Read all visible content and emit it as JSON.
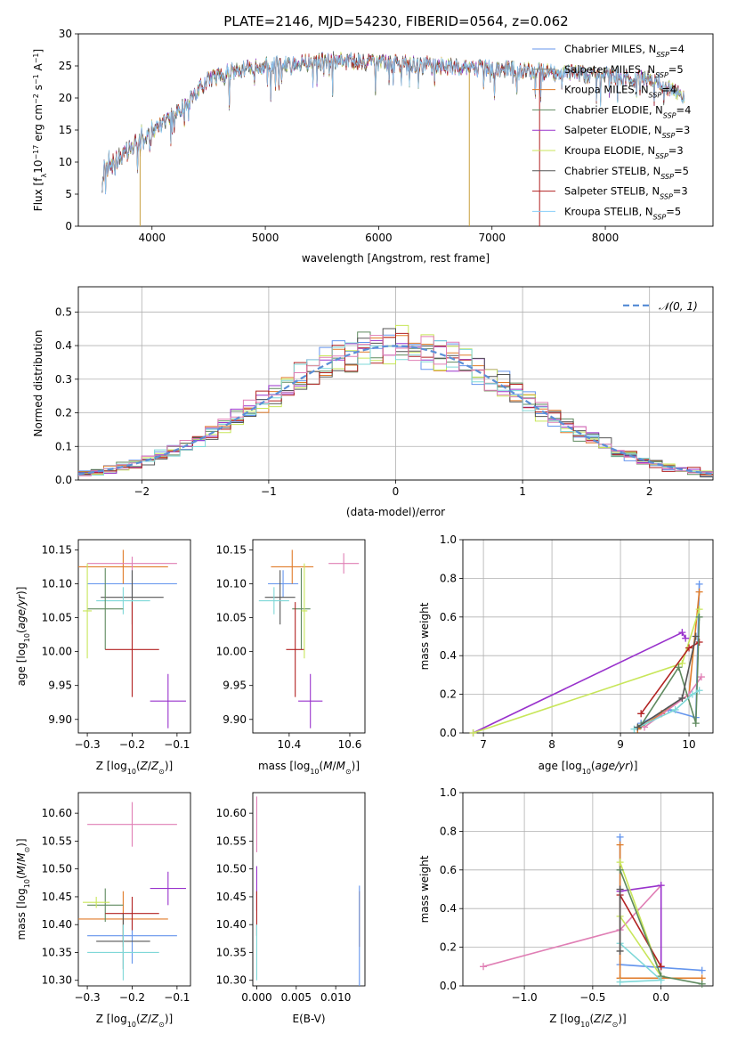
{
  "figure": {
    "title": "PLATE=2146, MJD=54230, FIBERID=0564, z=0.062"
  },
  "colors": {
    "chabrier_miles": "#6495ed",
    "salpeter_miles": "#808080",
    "kroupa_miles": "#e07b29",
    "chabrier_elodie": "#5f8a5f",
    "salpeter_elodie": "#9932cc",
    "kroupa_elodie": "#c8e65a",
    "chabrier_stelib": "#555555",
    "salpeter_stelib": "#b22222",
    "kroupa_stelib": "#87cefa",
    "pink": "#e07fb5",
    "teal": "#7fd8d8",
    "normal": "#5b8fd6"
  },
  "chart_data": [
    {
      "type": "line",
      "xlabel": "wavelength [Angstrom, rest frame]",
      "ylabel": "Flux [f_λ10^-17 erg cm^-2 s^-1 A^-1]",
      "xticks": [
        4000,
        5000,
        6000,
        7000,
        8000
      ],
      "yticks": [
        0,
        5,
        10,
        15,
        20,
        25,
        30
      ],
      "xlim": [
        3350,
        8950
      ],
      "ylim": [
        0,
        30
      ],
      "legend_position": "top-right",
      "legend": [
        {
          "name": "Chabrier MILES",
          "nssp": "4"
        },
        {
          "name": "Salpeter MILES",
          "nssp": "5"
        },
        {
          "name": "Kroupa MILES",
          "nssp": "4"
        },
        {
          "name": "Chabrier ELODIE",
          "nssp": "4"
        },
        {
          "name": "Salpeter ELODIE",
          "nssp": "3"
        },
        {
          "name": "Kroupa ELODIE",
          "nssp": "3"
        },
        {
          "name": "Chabrier STELIB",
          "nssp": "5"
        },
        {
          "name": "Salpeter STELIB",
          "nssp": "3"
        },
        {
          "name": "Kroupa STELIB",
          "nssp": "5"
        }
      ],
      "continuum": {
        "x": [
          3560,
          3700,
          3850,
          3950,
          4100,
          4300,
          4500,
          4800,
          5000,
          5300,
          5600,
          6000,
          6500,
          7000,
          7500,
          8000,
          8400,
          8700
        ],
        "y": [
          8,
          11,
          13,
          14,
          16,
          19,
          23,
          24.5,
          25,
          25.5,
          25.8,
          25.5,
          25,
          24.5,
          24,
          23.5,
          23,
          20.5
        ]
      }
    },
    {
      "type": "line",
      "xlabel": "(data-model)/error",
      "ylabel": "Normed distribution",
      "xticks": [
        -2,
        -1,
        0,
        1,
        2
      ],
      "yticks": [
        0.0,
        0.1,
        0.2,
        0.3,
        0.4,
        0.5
      ],
      "xlim": [
        -2.5,
        2.5
      ],
      "ylim": [
        0,
        0.575
      ],
      "grid": true,
      "legend_position": "top-right",
      "legend": [
        "𝒩(0, 1)"
      ]
    },
    {
      "type": "scatter",
      "xlabel": "Z [log10(Z/Z⊙)]",
      "ylabel": "age [log10(age/yr)]",
      "xticks": [
        -0.3,
        -0.2,
        -0.1
      ],
      "yticks": [
        9.9,
        9.95,
        10.0,
        10.05,
        10.1,
        10.15
      ],
      "xlim": [
        -0.32,
        -0.07
      ],
      "ylim": [
        9.88,
        10.165
      ],
      "points": [
        {
          "x": -0.2,
          "xerr": 0.1,
          "y": 10.1,
          "yerr": 0.02,
          "color": "#6495ed"
        },
        {
          "x": -0.22,
          "xerr": 0.1,
          "y": 10.125,
          "yerr": 0.025,
          "color": "#e07b29"
        },
        {
          "x": -0.2,
          "xerr": 0.1,
          "y": 10.13,
          "yerr": 0.01,
          "color": "#e07fb5"
        },
        {
          "x": -0.2,
          "xerr": 0.07,
          "y": 10.08,
          "yerr": 0.04,
          "color": "#555555"
        },
        {
          "x": -0.22,
          "xerr": 0.06,
          "y": 10.075,
          "yerr": 0.02,
          "color": "#7fd8d8"
        },
        {
          "x": -0.26,
          "xerr": 0.04,
          "y": 10.063,
          "yerr": 0.06,
          "color": "#5f8a5f"
        },
        {
          "x": -0.2,
          "xerr": 0.06,
          "y": 10.003,
          "yerr": 0.07,
          "color": "#b22222"
        },
        {
          "x": -0.12,
          "xerr": 0.04,
          "y": 9.927,
          "yerr": 0.04,
          "color": "#9932cc"
        },
        {
          "x": -0.3,
          "xerr": 0.01,
          "y": 10.06,
          "yerr": 0.07,
          "color": "#c8e65a"
        }
      ]
    },
    {
      "type": "scatter",
      "xlabel": "mass [log10(M/M⊙)]",
      "ylabel": "",
      "xticks": [
        10.4,
        10.6
      ],
      "yticks": [
        9.9,
        9.95,
        10.0,
        10.05,
        10.1,
        10.15
      ],
      "xlim": [
        10.28,
        10.65
      ],
      "ylim": [
        9.88,
        10.165
      ],
      "points": [
        {
          "x": 10.38,
          "xerr": 0.05,
          "y": 10.1,
          "yerr": 0.02,
          "color": "#6495ed"
        },
        {
          "x": 10.41,
          "xerr": 0.07,
          "y": 10.125,
          "yerr": 0.025,
          "color": "#e07b29"
        },
        {
          "x": 10.58,
          "xerr": 0.05,
          "y": 10.13,
          "yerr": 0.015,
          "color": "#e07fb5"
        },
        {
          "x": 10.37,
          "xerr": 0.05,
          "y": 10.08,
          "yerr": 0.04,
          "color": "#555555"
        },
        {
          "x": 10.35,
          "xerr": 0.05,
          "y": 10.075,
          "yerr": 0.02,
          "color": "#7fd8d8"
        },
        {
          "x": 10.44,
          "xerr": 0.03,
          "y": 10.063,
          "yerr": 0.06,
          "color": "#5f8a5f"
        },
        {
          "x": 10.42,
          "xerr": 0.03,
          "y": 10.003,
          "yerr": 0.07,
          "color": "#b22222"
        },
        {
          "x": 10.47,
          "xerr": 0.04,
          "y": 9.927,
          "yerr": 0.04,
          "color": "#9932cc"
        },
        {
          "x": 10.45,
          "xerr": 0.01,
          "y": 10.06,
          "yerr": 0.07,
          "color": "#c8e65a"
        }
      ]
    },
    {
      "type": "line",
      "xlabel": "age [log10(age/yr)]",
      "ylabel": "mass weight",
      "xticks": [
        7,
        8,
        9,
        10
      ],
      "yticks": [
        0.0,
        0.2,
        0.4,
        0.6,
        0.8,
        1.0
      ],
      "xlim": [
        6.7,
        10.35
      ],
      "ylim": [
        0,
        1
      ],
      "grid": true,
      "series": [
        {
          "color": "#6495ed",
          "x": [
            9.3,
            9.7,
            10.1,
            10.15
          ],
          "y": [
            0.05,
            0.12,
            0.08,
            0.77
          ]
        },
        {
          "color": "#e07b29",
          "x": [
            9.25,
            9.6,
            10.0,
            10.15
          ],
          "y": [
            0.02,
            0.1,
            0.2,
            0.73
          ]
        },
        {
          "color": "#e07fb5",
          "x": [
            9.35,
            10.0,
            10.18
          ],
          "y": [
            0.03,
            0.2,
            0.29
          ]
        },
        {
          "color": "#9932cc",
          "x": [
            6.85,
            9.9,
            9.95
          ],
          "y": [
            0.0,
            0.52,
            0.49
          ]
        },
        {
          "color": "#c8e65a",
          "x": [
            6.85,
            9.9,
            10.15
          ],
          "y": [
            0.0,
            0.36,
            0.64
          ]
        },
        {
          "color": "#b22222",
          "x": [
            9.3,
            10.0,
            10.15
          ],
          "y": [
            0.1,
            0.44,
            0.47
          ]
        },
        {
          "color": "#5f8a5f",
          "x": [
            9.3,
            9.85,
            10.1,
            10.15
          ],
          "y": [
            0.04,
            0.34,
            0.05,
            0.6
          ]
        },
        {
          "color": "#7fd8d8",
          "x": [
            9.2,
            9.8,
            10.05,
            10.15
          ],
          "y": [
            0.02,
            0.12,
            0.2,
            0.22
          ]
        },
        {
          "color": "#555555",
          "x": [
            9.25,
            9.9,
            10.1
          ],
          "y": [
            0.03,
            0.18,
            0.5
          ]
        }
      ]
    },
    {
      "type": "scatter",
      "xlabel": "Z [log10(Z/Z⊙)]",
      "ylabel": "mass [log10(M/M⊙)]",
      "xticks": [
        -0.3,
        -0.2,
        -0.1
      ],
      "yticks": [
        10.3,
        10.35,
        10.4,
        10.45,
        10.5,
        10.55,
        10.6
      ],
      "xlim": [
        -0.32,
        -0.07
      ],
      "ylim": [
        10.29,
        10.637
      ],
      "points": [
        {
          "x": -0.2,
          "xerr": 0.1,
          "y": 10.38,
          "yerr": 0.05,
          "color": "#6495ed"
        },
        {
          "x": -0.22,
          "xerr": 0.1,
          "y": 10.41,
          "yerr": 0.05,
          "color": "#e07b29"
        },
        {
          "x": -0.2,
          "xerr": 0.1,
          "y": 10.58,
          "yerr": 0.04,
          "color": "#e07fb5"
        },
        {
          "x": -0.22,
          "xerr": 0.06,
          "y": 10.37,
          "yerr": 0.05,
          "color": "#555555"
        },
        {
          "x": -0.22,
          "xerr": 0.08,
          "y": 10.35,
          "yerr": 0.05,
          "color": "#7fd8d8"
        },
        {
          "x": -0.26,
          "xerr": 0.04,
          "y": 10.435,
          "yerr": 0.03,
          "color": "#5f8a5f"
        },
        {
          "x": -0.2,
          "xerr": 0.06,
          "y": 10.42,
          "yerr": 0.03,
          "color": "#b22222"
        },
        {
          "x": -0.12,
          "xerr": 0.04,
          "y": 10.465,
          "yerr": 0.03,
          "color": "#9932cc"
        },
        {
          "x": -0.28,
          "xerr": 0.03,
          "y": 10.44,
          "yerr": 0.01,
          "color": "#c8e65a"
        }
      ]
    },
    {
      "type": "scatter",
      "xlabel": "E(B-V)",
      "ylabel": "",
      "xticks": [
        0.0,
        0.005,
        0.01
      ],
      "yticks": [
        10.3,
        10.35,
        10.4,
        10.45,
        10.5,
        10.55,
        10.6
      ],
      "xlim": [
        -0.0005,
        0.0137
      ],
      "ylim": [
        10.29,
        10.637
      ],
      "points": [
        {
          "x": 0.0,
          "y": 10.58,
          "yerr": 0.05,
          "color": "#e07fb5"
        },
        {
          "x": 0.0,
          "y": 10.465,
          "yerr": 0.04,
          "color": "#9932cc"
        },
        {
          "x": 0.0,
          "y": 10.42,
          "yerr": 0.04,
          "color": "#b22222"
        },
        {
          "x": 0.0,
          "y": 10.35,
          "yerr": 0.05,
          "color": "#7fd8d8"
        },
        {
          "x": 0.013,
          "y": 10.41,
          "yerr": 0.05,
          "color": "#e07b29"
        },
        {
          "x": 0.013,
          "y": 10.38,
          "yerr": 0.09,
          "color": "#6495ed"
        }
      ]
    },
    {
      "type": "line",
      "xlabel": "Z [log10(Z/Z⊙)]",
      "ylabel": "mass weight",
      "xticks": [
        -1.0,
        -0.5,
        0.0
      ],
      "yticks": [
        0.0,
        0.2,
        0.4,
        0.6,
        0.8,
        1.0
      ],
      "xlim": [
        -1.45,
        0.38
      ],
      "ylim": [
        0,
        1
      ],
      "grid": true,
      "series": [
        {
          "color": "#6495ed",
          "x": [
            -0.3,
            -0.3,
            0.3
          ],
          "y": [
            0.77,
            0.11,
            0.08
          ]
        },
        {
          "color": "#e07b29",
          "x": [
            -0.3,
            -0.3,
            0.3
          ],
          "y": [
            0.73,
            0.04,
            0.04
          ]
        },
        {
          "color": "#e07fb5",
          "x": [
            -1.3,
            -0.3,
            0.0
          ],
          "y": [
            0.1,
            0.29,
            0.52
          ]
        },
        {
          "color": "#9932cc",
          "x": [
            -0.3,
            0.0,
            0.0
          ],
          "y": [
            0.49,
            0.52,
            0.1
          ]
        },
        {
          "color": "#c8e65a",
          "x": [
            -0.3,
            0.0,
            -0.3
          ],
          "y": [
            0.64,
            0.05,
            0.36
          ]
        },
        {
          "color": "#b22222",
          "x": [
            -0.3,
            0.0
          ],
          "y": [
            0.47,
            0.1
          ]
        },
        {
          "color": "#5f8a5f",
          "x": [
            -0.3,
            0.0,
            0.3
          ],
          "y": [
            0.6,
            0.05,
            0.01
          ]
        },
        {
          "color": "#7fd8d8",
          "x": [
            -0.3,
            0.0,
            -0.3
          ],
          "y": [
            0.22,
            0.03,
            0.02
          ]
        },
        {
          "color": "#555555",
          "x": [
            -0.3,
            -0.3
          ],
          "y": [
            0.5,
            0.18
          ]
        }
      ]
    }
  ]
}
